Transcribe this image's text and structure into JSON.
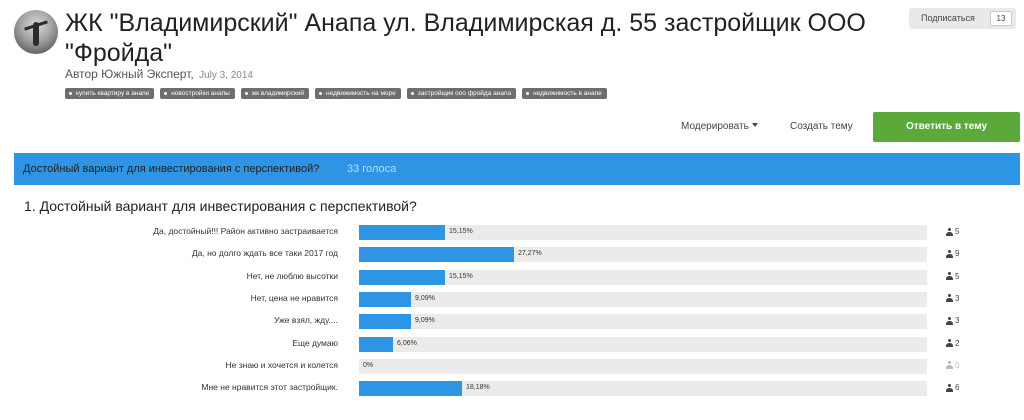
{
  "topic": {
    "title": "ЖК \"Владимирский\" Анапа ул. Владимирская д. 55 застройщик ООО \"Фройда\"",
    "author_prefix": "Автор",
    "author": "Южный Эксперт",
    "date": "July 3, 2014"
  },
  "subscribe": {
    "label": "Подписаться",
    "count": "13"
  },
  "tags": [
    "купить квартиру в анапе",
    "новостройки анапы",
    "жк владимирский",
    "недвижимость на море",
    "застройщик ооо фройда анапа",
    "недвижимость в анапе"
  ],
  "toolbar": {
    "moderate_label": "Модерировать",
    "create_label": "Создать тему",
    "reply_label": "Ответить в тему"
  },
  "poll": {
    "header_question": "Достойный вариант для инвестирования с перспективой?",
    "votes_label": "33 голоса",
    "question_title": "1. Достойный вариант для инвестирования с перспективой?",
    "options": [
      {
        "label": "Да, достойный!!! Район активно застраивается",
        "percent_label": "15,15%",
        "percent": 15.15,
        "count": "5"
      },
      {
        "label": "Да, но долго ждать все таки 2017 год",
        "percent_label": "27,27%",
        "percent": 27.27,
        "count": "9"
      },
      {
        "label": "Нет, не люблю высотки",
        "percent_label": "15,15%",
        "percent": 15.15,
        "count": "5"
      },
      {
        "label": "Нет, цена не нравится",
        "percent_label": "9,09%",
        "percent": 9.09,
        "count": "3"
      },
      {
        "label": "Уже взял, жду....",
        "percent_label": "9,09%",
        "percent": 9.09,
        "count": "3"
      },
      {
        "label": "Еще думаю",
        "percent_label": "6,06%",
        "percent": 6.06,
        "count": "2"
      },
      {
        "label": "Не знаю и хочется и колется",
        "percent_label": "0%",
        "percent": 0,
        "count": "0"
      },
      {
        "label": "Мне не нравится этот застройщик.",
        "percent_label": "18,18%",
        "percent": 18.18,
        "count": "6"
      }
    ]
  },
  "colors": {
    "accent": "#2d95e3",
    "reply_button": "#5aa93a",
    "tag_bg": "#6e6e6e",
    "track": "#ebebeb"
  },
  "icons": {
    "voter_count": "user-icon",
    "author_avatar": "avatar"
  }
}
